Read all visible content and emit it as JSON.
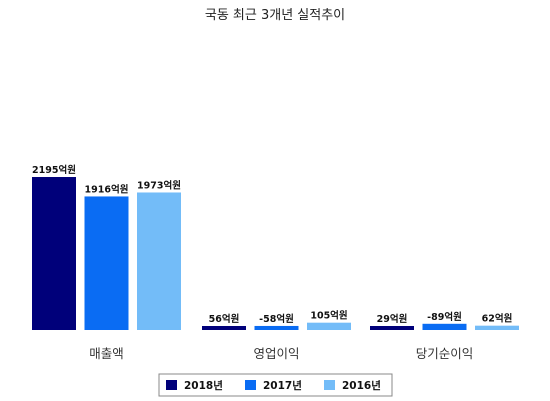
{
  "chart_data": {
    "type": "bar",
    "title": "국동 최근 3개년 실적추이",
    "categories": [
      "매출액",
      "영업이익",
      "당기순이익"
    ],
    "series": [
      {
        "name": "2018년",
        "color": "#00007a",
        "values": [
          2195,
          56,
          29
        ],
        "labels": [
          "2195억원",
          "56억원",
          "29억원"
        ]
      },
      {
        "name": "2017년",
        "color": "#0a6cf3",
        "values": [
          1916,
          -58,
          -89
        ],
        "labels": [
          "1916억원",
          "-58억원",
          "-89억원"
        ]
      },
      {
        "name": "2016년",
        "color": "#73bcf8",
        "values": [
          1973,
          105,
          62
        ],
        "labels": [
          "1973억원",
          "105억원",
          "62억원"
        ]
      }
    ],
    "legend_position": "bottom",
    "grid": false
  }
}
